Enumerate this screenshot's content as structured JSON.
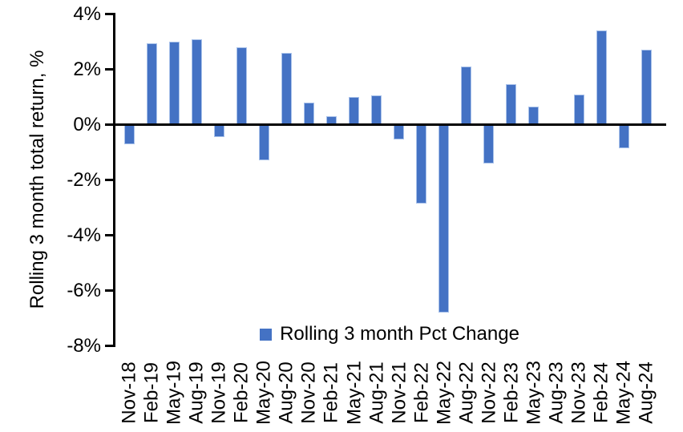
{
  "chart_data": {
    "type": "bar",
    "title": "",
    "ylabel": "Rolling 3 month total return, %",
    "xlabel": "",
    "ylim": [
      -8,
      4
    ],
    "ytick_interval": 2,
    "ytick_labels": [
      "4%",
      "2%",
      "0%",
      "-2%",
      "-4%",
      "-6%",
      "-8%"
    ],
    "grid": false,
    "categories": [
      "Nov-18",
      "Feb-19",
      "May-19",
      "Aug-19",
      "Nov-19",
      "Feb-20",
      "May-20",
      "Aug-20",
      "Nov-20",
      "Feb-21",
      "May-21",
      "Aug-21",
      "Nov-21",
      "Feb-22",
      "May-22",
      "Aug-22",
      "Nov-22",
      "Feb-23",
      "May-23",
      "Aug-23",
      "Nov-23",
      "Feb-24",
      "May-24",
      "Aug-24"
    ],
    "values": [
      -0.7,
      2.95,
      3.0,
      3.1,
      -0.45,
      2.8,
      -1.3,
      2.6,
      0.8,
      0.3,
      1.0,
      1.05,
      -0.55,
      -2.85,
      -6.8,
      2.1,
      -1.4,
      1.45,
      0.65,
      0,
      1.1,
      3.4,
      -0.85,
      2.7
    ],
    "legend": {
      "label": "Rolling 3 month Pct Change",
      "position": "bottom-center"
    },
    "colors": {
      "bar_fill": "#4472C4",
      "bar_border": "#A9C2EA",
      "axis": "#000000",
      "background": "#FFFFFF"
    }
  }
}
